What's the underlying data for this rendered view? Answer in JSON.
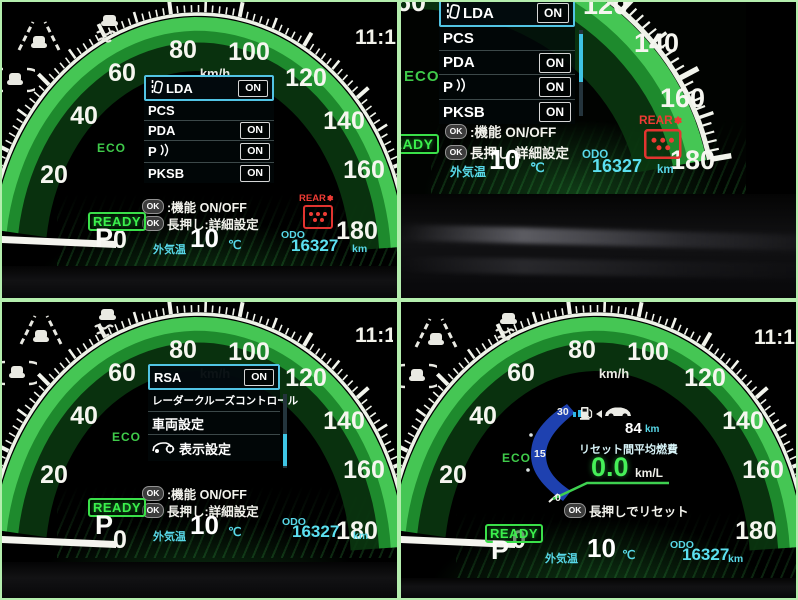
{
  "clock": "11:1",
  "gauge": {
    "unit": "km/h",
    "scale": [
      "0",
      "20",
      "40",
      "60",
      "80",
      "100",
      "120",
      "140",
      "160",
      "180"
    ]
  },
  "status": {
    "eco": "ECO",
    "ready": "READY",
    "gear": "P",
    "ok": "OK",
    "hint_function": ":機能 ON/OFF",
    "hint_longpress": "長押し:詳細設定",
    "temp_label": "外気温",
    "temp_value": "10",
    "temp_unit": "℃",
    "odo_label": "ODO",
    "odo_value": "16327",
    "odo_unit": "km",
    "rear_label": "REAR"
  },
  "assist_menu": {
    "items": [
      {
        "label": "LDA",
        "value": "ON",
        "selected": true
      },
      {
        "label": "PCS",
        "value": ""
      },
      {
        "label": "PDA",
        "value": "ON"
      },
      {
        "label": "P",
        "value": "ON"
      },
      {
        "label": "PKSB",
        "value": "ON"
      }
    ]
  },
  "settings_menu": {
    "items": [
      {
        "label": "RSA",
        "value": "ON",
        "selected": true
      },
      {
        "label": "レーダークルーズコントロール",
        "value": ""
      },
      {
        "label": "車両設定",
        "value": ""
      },
      {
        "label": "表示設定",
        "value": ""
      }
    ]
  },
  "eco_panel": {
    "scale_top": "30",
    "scale_mid": "15",
    "scale_low": "0",
    "range_value": "84",
    "range_unit": "km",
    "avg_label": "リセット間平均燃費",
    "avg_value": "0.0",
    "avg_unit": "km/L",
    "reset_hint": "長押しでリセット"
  }
}
